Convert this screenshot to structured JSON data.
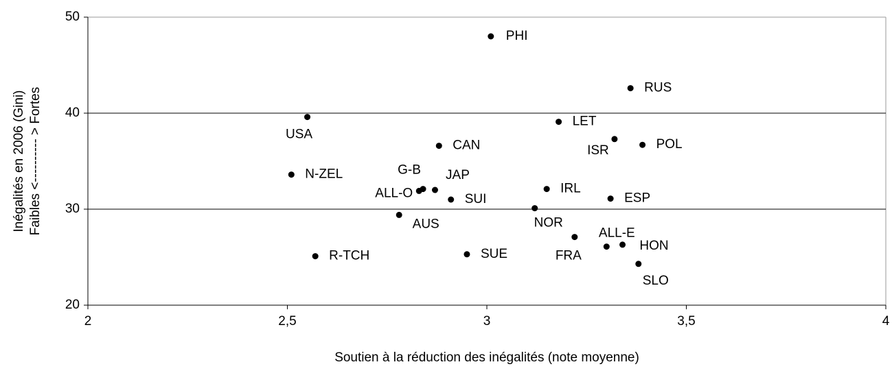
{
  "chart_data": {
    "type": "scatter",
    "x_label": "Soutien à la réduction des inégalités (note moyenne)",
    "y_label": [
      "Inégalités en 2006 (Gini)",
      "Faibles <---------- > Fortes"
    ],
    "color": "#000000",
    "series": [
      {
        "names": [
          "PHI",
          "RUS",
          "USA",
          "LET",
          "ISR",
          "POL",
          "CAN",
          "N-ZEL",
          "G-B",
          "JAP",
          "ALL-O",
          "IRL",
          "SUI",
          "ESP",
          "NOR",
          "AUS",
          "FRA",
          "ALL-E",
          "HON",
          "R-TCH",
          "SUE",
          "SLO"
        ],
        "x": [
          3.01,
          3.36,
          2.55,
          3.18,
          3.32,
          3.39,
          2.88,
          2.51,
          2.84,
          2.87,
          2.83,
          3.15,
          2.91,
          3.31,
          3.12,
          2.78,
          3.22,
          3.3,
          3.34,
          2.57,
          2.95,
          3.38
        ],
        "values": [
          48.0,
          42.6,
          39.6,
          39.1,
          37.3,
          36.7,
          36.6,
          33.6,
          32.1,
          32.0,
          31.9,
          32.1,
          31.0,
          31.1,
          30.1,
          29.4,
          27.1,
          26.1,
          26.3,
          25.1,
          25.3,
          24.3
        ]
      }
    ],
    "xlim": [
      2,
      4
    ],
    "xticks": [
      2,
      {
        "value": 2.5,
        "label": "2,5"
      },
      3,
      {
        "value": 3.5,
        "label": "3,5"
      },
      4
    ],
    "ylim": [
      20,
      50
    ],
    "yticks": [
      20,
      30,
      40,
      50
    ],
    "grid": true
  }
}
